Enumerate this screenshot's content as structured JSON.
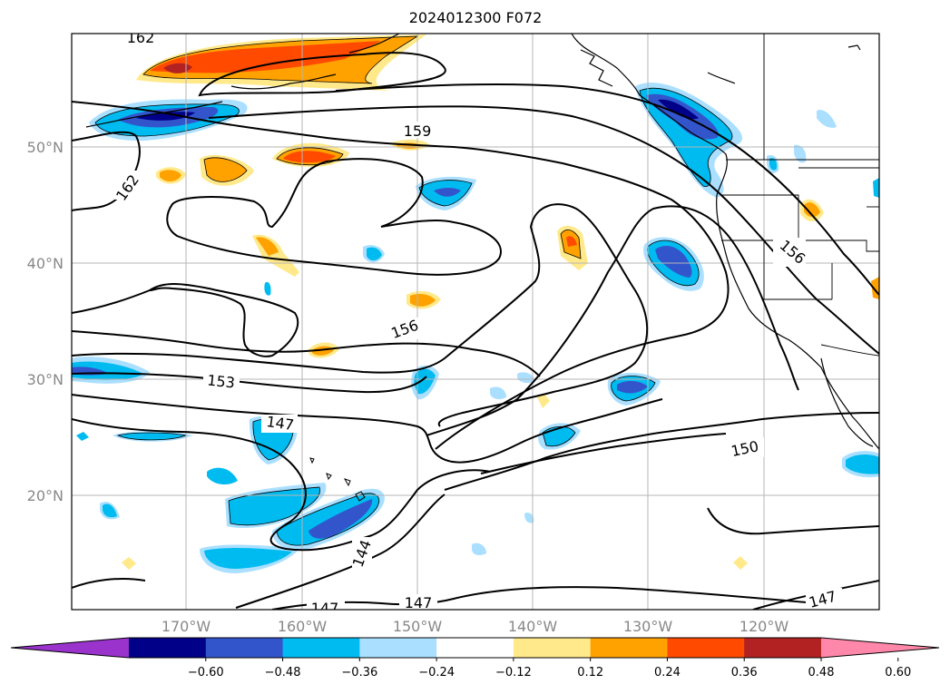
{
  "title": "2024012300 F072",
  "lat_labels": [
    "50°N",
    "40°N",
    "30°N",
    "20°N"
  ],
  "lon_labels": [
    "170°W",
    "160°W",
    "150°W",
    "140°W",
    "130°W",
    "120°W"
  ],
  "contour_labels": [
    "162",
    "162",
    "159",
    "156",
    "156",
    "153",
    "150",
    "147",
    "147",
    "147",
    "147",
    "144"
  ],
  "colorbar": {
    "ticks": [
      "−0.60",
      "−0.48",
      "−0.36",
      "−0.24",
      "−0.12",
      "0.12",
      "0.24",
      "0.36",
      "0.48",
      "0.60"
    ],
    "colors": [
      "#9933cc",
      "#000088",
      "#3355cc",
      "#00bbf0",
      "#aadfff",
      "#ffffff",
      "#ffe98a",
      "#ffa200",
      "#ff4a00",
      "#b22222",
      "#ff88aa"
    ]
  }
}
